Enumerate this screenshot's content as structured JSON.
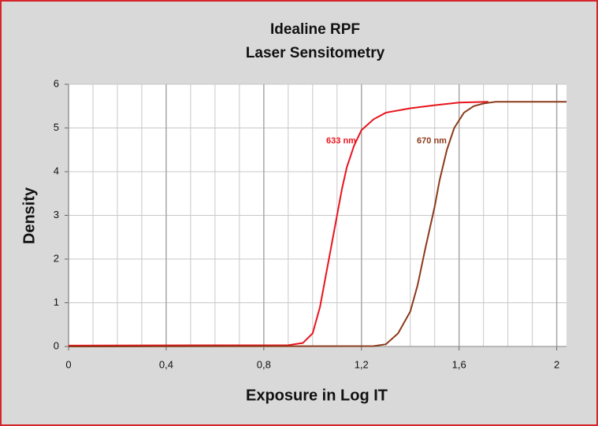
{
  "chart_data": {
    "type": "line",
    "title": "Idealine RPF",
    "subtitle": "Laser Sensitometry",
    "xlabel": "Exposure in Log IT",
    "ylabel": "Density",
    "xlim": [
      0,
      2.04
    ],
    "ylim": [
      0,
      6
    ],
    "xticks": [
      0,
      {
        "value": 0.4,
        "label": "0,4"
      },
      {
        "value": 0.8,
        "label": "0,8"
      },
      {
        "value": 1.2,
        "label": "1,2"
      },
      {
        "value": 1.6,
        "label": "1,6"
      },
      2
    ],
    "yticks": [
      0,
      1,
      2,
      3,
      4,
      5,
      6
    ],
    "grid": true,
    "annotations": [
      "633 nm",
      "670 nm"
    ],
    "series": [
      {
        "name": "633 nm",
        "color": "#e8141c",
        "x": [
          0,
          0.9,
          0.96,
          1.0,
          1.03,
          1.06,
          1.08,
          1.1,
          1.12,
          1.14,
          1.17,
          1.2,
          1.25,
          1.3,
          1.4,
          1.5,
          1.6,
          1.72
        ],
        "values": [
          0.02,
          0.03,
          0.08,
          0.3,
          0.9,
          1.8,
          2.4,
          3.0,
          3.6,
          4.1,
          4.6,
          4.95,
          5.2,
          5.35,
          5.45,
          5.52,
          5.58,
          5.6
        ]
      },
      {
        "name": "670 nm",
        "color": "#8b3a1a",
        "x": [
          0,
          1.25,
          1.3,
          1.35,
          1.4,
          1.43,
          1.46,
          1.48,
          1.5,
          1.52,
          1.55,
          1.58,
          1.62,
          1.66,
          1.7,
          1.75,
          1.8,
          2.04
        ],
        "values": [
          0,
          0.01,
          0.05,
          0.3,
          0.8,
          1.4,
          2.2,
          2.7,
          3.2,
          3.8,
          4.5,
          5.0,
          5.35,
          5.5,
          5.56,
          5.6,
          5.6,
          5.6
        ]
      }
    ]
  }
}
